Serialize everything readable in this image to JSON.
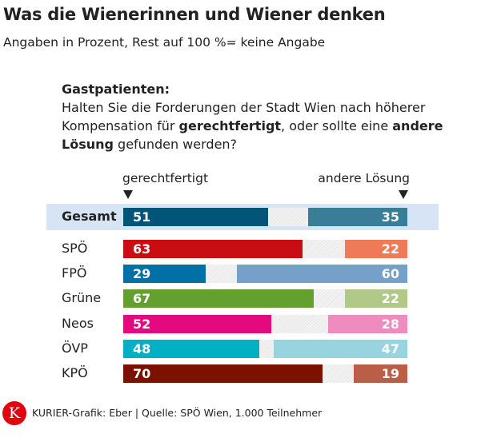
{
  "title": "Was die Wienerinnen und Wiener denken",
  "subtitle": "Angaben in Prozent, Rest auf 100 %= keine Angabe",
  "question": {
    "heading": "Gastpatienten:",
    "line1": "Halten Sie die Forderungen der Stadt Wien nach höherer",
    "line2_pre": "Kompensation für ",
    "line2_bold": "gerechtfertigt",
    "line2_mid": ", oder sollte eine ",
    "line2_bold2": "andere",
    "line3_bold": "Lösung",
    "line3_post": " gefunden werden?"
  },
  "footer": {
    "logo": "K",
    "credit": "KURIER-Grafik: Eber | Quelle: SPÖ Wien, 1.000 Teilnehmer"
  },
  "chart_data": {
    "type": "bar",
    "orientation": "horizontal-diverging-stacked",
    "xlim": [
      0,
      100
    ],
    "series": [
      {
        "name": "gerechtfertigt"
      },
      {
        "name": "andere Lösung"
      }
    ],
    "gap_color": "#e8e8e8",
    "highlight_row": "Gesamt",
    "highlight_color": "#d6e4f5",
    "rows": [
      {
        "label": "Gesamt",
        "left": 51,
        "right": 35,
        "left_color": "#025478",
        "right_color": "#3a7d98"
      },
      {
        "label": "SPÖ",
        "left": 63,
        "right": 22,
        "left_color": "#c90d13",
        "right_color": "#ef7a5a"
      },
      {
        "label": "FPÖ",
        "left": 29,
        "right": 60,
        "left_color": "#0070a6",
        "right_color": "#75a0c9"
      },
      {
        "label": "Grüne",
        "left": 67,
        "right": 22,
        "left_color": "#63a02f",
        "right_color": "#b0c986"
      },
      {
        "label": "Neos",
        "left": 52,
        "right": 28,
        "left_color": "#e4097f",
        "right_color": "#ee8cbf"
      },
      {
        "label": "ÖVP",
        "left": 48,
        "right": 47,
        "left_color": "#00b0c3",
        "right_color": "#98d4df"
      },
      {
        "label": "KPÖ",
        "left": 70,
        "right": 19,
        "left_color": "#7d1100",
        "right_color": "#ba5e48"
      }
    ]
  }
}
